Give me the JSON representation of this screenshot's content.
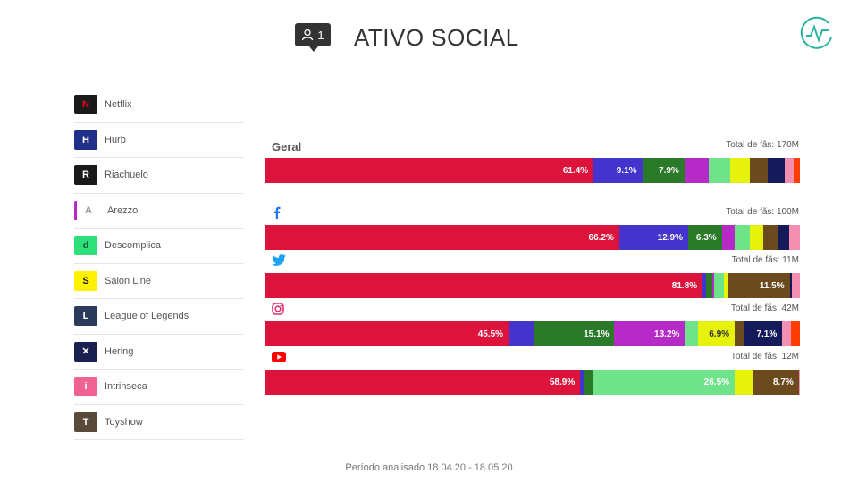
{
  "header": {
    "title": "ATIVO SOCIAL",
    "user_count": "1"
  },
  "sidebar": {
    "brands": [
      {
        "name": "Netflix",
        "logo_bg": "#1a1a1a",
        "logo_fg": "#e50914",
        "logo_text": "N"
      },
      {
        "name": "Hurb",
        "logo_bg": "#1f2f8a",
        "logo_fg": "#ffffff",
        "logo_text": "H"
      },
      {
        "name": "Riachuelo",
        "logo_bg": "#1a1a1a",
        "logo_fg": "#ffffff",
        "logo_text": "R"
      },
      {
        "name": "Arezzo",
        "logo_bg": "#ffffff",
        "logo_fg": "#999999",
        "logo_text": "A"
      },
      {
        "name": "Descomplica",
        "logo_bg": "#2ee07a",
        "logo_fg": "#1a5a3a",
        "logo_text": "d"
      },
      {
        "name": "Salon Line",
        "logo_bg": "#fff200",
        "logo_fg": "#111111",
        "logo_text": "S"
      },
      {
        "name": "League of Legends",
        "logo_bg": "#2a3a5a",
        "logo_fg": "#ffffff",
        "logo_text": "L"
      },
      {
        "name": "Hering",
        "logo_bg": "#1a2050",
        "logo_fg": "#ffffff",
        "logo_text": "✕"
      },
      {
        "name": "Intrinseca",
        "logo_bg": "#f06292",
        "logo_fg": "#ffffff",
        "logo_text": "i"
      },
      {
        "name": "Toyshow",
        "logo_bg": "#5a4a3a",
        "logo_fg": "#ffffff",
        "logo_text": "T"
      }
    ]
  },
  "footer": {
    "period": "Período analisado 18.04.20 - 18.05.20"
  },
  "chart_data": {
    "type": "bar",
    "stacked": true,
    "orientation": "horizontal",
    "normalized": true,
    "series_colors": [
      "#dc143c",
      "#4433cc",
      "#2a7a2a",
      "#b62ac8",
      "#6fe38a",
      "#e6f20a",
      "#6b4a1e",
      "#151a5a",
      "#f48fb1",
      "#ff3d00"
    ],
    "rows": [
      {
        "key": "geral",
        "label": "Geral",
        "icon": "",
        "total": "Total de fãs: 170M",
        "values": [
          61.4,
          9.1,
          7.9,
          4.5,
          4.0,
          3.7,
          3.3,
          3.2,
          1.8,
          1.1
        ],
        "labels": [
          "61.4%",
          "9.1%",
          "7.9%",
          "",
          "",
          "",
          "",
          "",
          "",
          ""
        ]
      },
      {
        "key": "facebook",
        "label": "",
        "icon": "facebook",
        "total": "Total de fãs: 100M",
        "values": [
          66.2,
          12.9,
          6.3,
          2.4,
          2.8,
          2.5,
          2.7,
          2.2,
          2.0,
          0.0
        ],
        "labels": [
          "66.2%",
          "12.9%",
          "6.3%",
          "",
          "",
          "",
          "",
          "",
          "",
          ""
        ]
      },
      {
        "key": "twitter",
        "label": "",
        "icon": "twitter",
        "total": "Total de fãs: 11M",
        "values": [
          81.8,
          0.6,
          1.2,
          0.4,
          1.8,
          0.8,
          11.5,
          0.4,
          1.5,
          0.0
        ],
        "labels": [
          "81.8%",
          "",
          "",
          "",
          "",
          "",
          "11.5%",
          "",
          "",
          ""
        ]
      },
      {
        "key": "instagram",
        "label": "",
        "icon": "instagram",
        "total": "Total de fãs: 42M",
        "values": [
          45.5,
          4.7,
          15.1,
          13.2,
          2.4,
          6.9,
          1.8,
          7.1,
          1.6,
          1.7
        ],
        "labels": [
          "45.5%",
          "",
          "15.1%",
          "13.2%",
          "",
          "6.9%",
          "",
          "7.1%",
          "",
          ""
        ]
      },
      {
        "key": "youtube",
        "label": "",
        "icon": "youtube",
        "total": "Total de fãs: 12M",
        "values": [
          58.9,
          0.7,
          1.7,
          0.0,
          26.5,
          3.3,
          8.7,
          0.0,
          0.2,
          0.0
        ],
        "labels": [
          "58.9%",
          "",
          "",
          "",
          "26.5%",
          "",
          "8.7%",
          "",
          "",
          ""
        ]
      }
    ]
  }
}
